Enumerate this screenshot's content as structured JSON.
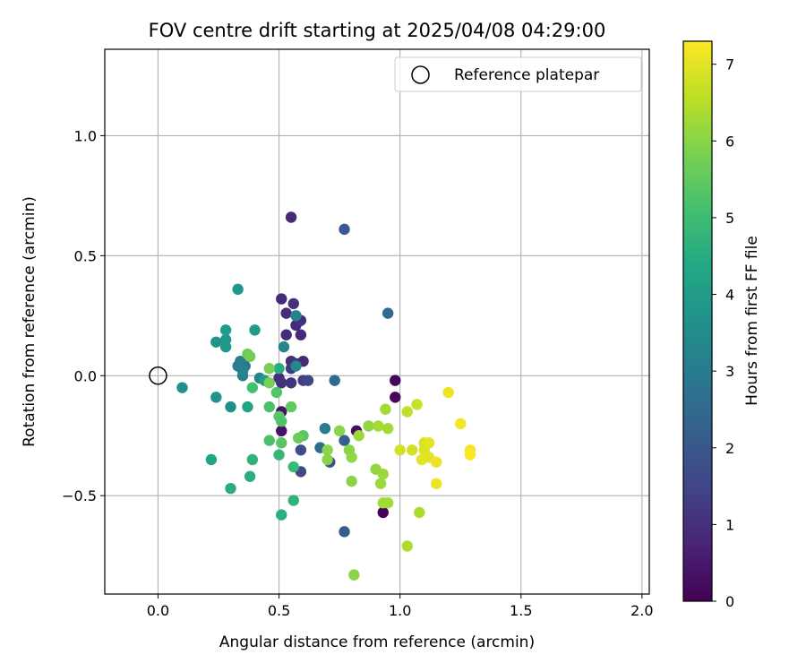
{
  "chart_data": {
    "type": "scatter",
    "title": "FOV centre drift starting at 2025/04/08 04:29:00",
    "xlabel": "Angular distance from reference (arcmin)",
    "ylabel": "Rotation from reference (arcmin)",
    "xlim": [
      -0.22,
      2.03
    ],
    "ylim": [
      -0.91,
      1.36
    ],
    "xticks": [
      0.0,
      0.5,
      1.0,
      1.5,
      2.0
    ],
    "xtick_labels": [
      "0.0",
      "0.5",
      "1.0",
      "1.5",
      "2.0"
    ],
    "yticks": [
      -0.5,
      0.0,
      0.5,
      1.0
    ],
    "ytick_labels": [
      "−0.5",
      "0.0",
      "0.5",
      "1.0"
    ],
    "grid": true,
    "legend": {
      "position": "top-right",
      "entries": [
        {
          "label": "Reference platepar",
          "marker": "open-circle",
          "x": 0.0,
          "y": 0.0
        }
      ]
    },
    "colorbar": {
      "label": "Hours from first FF file",
      "colormap": "viridis",
      "range": [
        0,
        7.3
      ],
      "ticks": [
        0,
        1,
        2,
        3,
        4,
        5,
        6,
        7
      ],
      "tick_labels": [
        "0",
        "1",
        "2",
        "3",
        "4",
        "5",
        "6",
        "7"
      ]
    },
    "points": [
      {
        "x": 0.93,
        "y": -0.57,
        "c": 0.05
      },
      {
        "x": 0.98,
        "y": -0.02,
        "c": 0.1
      },
      {
        "x": 0.98,
        "y": -0.09,
        "c": 0.15
      },
      {
        "x": 0.82,
        "y": -0.23,
        "c": 0.2
      },
      {
        "x": 0.51,
        "y": -0.23,
        "c": 0.35
      },
      {
        "x": 0.51,
        "y": -0.15,
        "c": 0.4
      },
      {
        "x": 0.55,
        "y": 0.66,
        "c": 0.8
      },
      {
        "x": 0.51,
        "y": 0.32,
        "c": 0.9
      },
      {
        "x": 0.53,
        "y": 0.26,
        "c": 0.9
      },
      {
        "x": 0.56,
        "y": 0.3,
        "c": 1.0
      },
      {
        "x": 0.57,
        "y": 0.21,
        "c": 0.9
      },
      {
        "x": 0.59,
        "y": 0.23,
        "c": 1.0
      },
      {
        "x": 0.59,
        "y": 0.17,
        "c": 0.8
      },
      {
        "x": 0.53,
        "y": 0.17,
        "c": 0.9
      },
      {
        "x": 0.55,
        "y": 0.06,
        "c": 1.0
      },
      {
        "x": 0.6,
        "y": 0.06,
        "c": 0.9
      },
      {
        "x": 0.57,
        "y": 0.05,
        "c": 1.0
      },
      {
        "x": 0.55,
        "y": 0.03,
        "c": 1.2
      },
      {
        "x": 0.5,
        "y": -0.01,
        "c": 0.9
      },
      {
        "x": 0.51,
        "y": -0.03,
        "c": 1.0
      },
      {
        "x": 0.55,
        "y": -0.03,
        "c": 1.1
      },
      {
        "x": 0.6,
        "y": -0.02,
        "c": 1.3
      },
      {
        "x": 0.62,
        "y": -0.02,
        "c": 1.5
      },
      {
        "x": 0.59,
        "y": -0.4,
        "c": 1.6
      },
      {
        "x": 0.59,
        "y": -0.31,
        "c": 1.7
      },
      {
        "x": 0.71,
        "y": -0.36,
        "c": 1.7
      },
      {
        "x": 0.77,
        "y": 0.61,
        "c": 2.1
      },
      {
        "x": 0.77,
        "y": -0.65,
        "c": 2.1
      },
      {
        "x": 0.77,
        "y": -0.27,
        "c": 2.2
      },
      {
        "x": 0.73,
        "y": -0.02,
        "c": 2.5
      },
      {
        "x": 0.95,
        "y": 0.26,
        "c": 2.6
      },
      {
        "x": 0.67,
        "y": -0.3,
        "c": 2.6
      },
      {
        "x": 0.69,
        "y": -0.22,
        "c": 3.0
      },
      {
        "x": 0.36,
        "y": 0.04,
        "c": 2.9
      },
      {
        "x": 0.34,
        "y": 0.06,
        "c": 3.0
      },
      {
        "x": 0.33,
        "y": 0.04,
        "c": 3.1
      },
      {
        "x": 0.35,
        "y": 0.0,
        "c": 3.1
      },
      {
        "x": 0.35,
        "y": 0.02,
        "c": 3.2
      },
      {
        "x": 0.42,
        "y": -0.01,
        "c": 3.3
      },
      {
        "x": 0.52,
        "y": 0.12,
        "c": 3.3
      },
      {
        "x": 0.57,
        "y": 0.25,
        "c": 3.2
      },
      {
        "x": 0.57,
        "y": 0.04,
        "c": 3.4
      },
      {
        "x": 0.1,
        "y": -0.05,
        "c": 3.6
      },
      {
        "x": 0.24,
        "y": -0.09,
        "c": 3.7
      },
      {
        "x": 0.3,
        "y": -0.13,
        "c": 3.6
      },
      {
        "x": 0.24,
        "y": 0.14,
        "c": 3.7
      },
      {
        "x": 0.28,
        "y": 0.15,
        "c": 3.8
      },
      {
        "x": 0.28,
        "y": 0.12,
        "c": 3.9
      },
      {
        "x": 0.28,
        "y": 0.19,
        "c": 4.0
      },
      {
        "x": 0.33,
        "y": 0.36,
        "c": 3.8
      },
      {
        "x": 0.4,
        "y": 0.19,
        "c": 4.0
      },
      {
        "x": 0.44,
        "y": -0.02,
        "c": 4.1
      },
      {
        "x": 0.37,
        "y": -0.13,
        "c": 4.3
      },
      {
        "x": 0.22,
        "y": -0.35,
        "c": 4.3
      },
      {
        "x": 0.3,
        "y": -0.47,
        "c": 4.5
      },
      {
        "x": 0.38,
        "y": -0.42,
        "c": 4.6
      },
      {
        "x": 0.39,
        "y": -0.35,
        "c": 4.7
      },
      {
        "x": 0.51,
        "y": -0.58,
        "c": 4.6
      },
      {
        "x": 0.56,
        "y": -0.52,
        "c": 4.7
      },
      {
        "x": 0.5,
        "y": 0.03,
        "c": 4.5
      },
      {
        "x": 0.5,
        "y": -0.33,
        "c": 4.8
      },
      {
        "x": 0.56,
        "y": -0.38,
        "c": 4.9
      },
      {
        "x": 0.39,
        "y": -0.05,
        "c": 5.1
      },
      {
        "x": 0.46,
        "y": -0.13,
        "c": 5.2
      },
      {
        "x": 0.49,
        "y": -0.07,
        "c": 5.3
      },
      {
        "x": 0.5,
        "y": -0.17,
        "c": 5.4
      },
      {
        "x": 0.51,
        "y": -0.19,
        "c": 5.3
      },
      {
        "x": 0.46,
        "y": -0.27,
        "c": 5.2
      },
      {
        "x": 0.51,
        "y": -0.28,
        "c": 5.4
      },
      {
        "x": 0.55,
        "y": -0.13,
        "c": 5.5
      },
      {
        "x": 0.6,
        "y": -0.25,
        "c": 5.4
      },
      {
        "x": 0.58,
        "y": -0.26,
        "c": 5.6
      },
      {
        "x": 0.37,
        "y": 0.09,
        "c": 5.6
      },
      {
        "x": 0.38,
        "y": 0.08,
        "c": 5.7
      },
      {
        "x": 0.46,
        "y": 0.03,
        "c": 5.8
      },
      {
        "x": 0.46,
        "y": -0.03,
        "c": 5.8
      },
      {
        "x": 0.75,
        "y": -0.23,
        "c": 6.0
      },
      {
        "x": 0.7,
        "y": -0.31,
        "c": 6.0
      },
      {
        "x": 0.7,
        "y": -0.35,
        "c": 6.0
      },
      {
        "x": 0.79,
        "y": -0.31,
        "c": 6.0
      },
      {
        "x": 0.8,
        "y": -0.34,
        "c": 6.1
      },
      {
        "x": 0.83,
        "y": -0.25,
        "c": 6.2
      },
      {
        "x": 0.87,
        "y": -0.21,
        "c": 6.1
      },
      {
        "x": 0.8,
        "y": -0.44,
        "c": 6.0
      },
      {
        "x": 0.81,
        "y": -0.83,
        "c": 6.0
      },
      {
        "x": 0.9,
        "y": -0.39,
        "c": 6.1
      },
      {
        "x": 0.93,
        "y": -0.41,
        "c": 6.2
      },
      {
        "x": 0.92,
        "y": -0.45,
        "c": 6.2
      },
      {
        "x": 0.93,
        "y": -0.53,
        "c": 6.3
      },
      {
        "x": 0.95,
        "y": -0.53,
        "c": 6.3
      },
      {
        "x": 0.91,
        "y": -0.21,
        "c": 6.3
      },
      {
        "x": 0.95,
        "y": -0.22,
        "c": 6.3
      },
      {
        "x": 0.94,
        "y": -0.14,
        "c": 6.3
      },
      {
        "x": 1.03,
        "y": -0.71,
        "c": 6.4
      },
      {
        "x": 1.08,
        "y": -0.57,
        "c": 6.4
      },
      {
        "x": 1.03,
        "y": -0.15,
        "c": 6.6
      },
      {
        "x": 1.07,
        "y": -0.12,
        "c": 6.7
      },
      {
        "x": 1.0,
        "y": -0.31,
        "c": 6.8
      },
      {
        "x": 1.05,
        "y": -0.31,
        "c": 6.8
      },
      {
        "x": 1.1,
        "y": -0.31,
        "c": 6.9
      },
      {
        "x": 1.09,
        "y": -0.35,
        "c": 7.0
      },
      {
        "x": 1.12,
        "y": -0.34,
        "c": 7.0
      },
      {
        "x": 1.1,
        "y": -0.28,
        "c": 6.9
      },
      {
        "x": 1.12,
        "y": -0.28,
        "c": 7.0
      },
      {
        "x": 1.15,
        "y": -0.36,
        "c": 7.1
      },
      {
        "x": 1.15,
        "y": -0.45,
        "c": 7.1
      },
      {
        "x": 1.2,
        "y": -0.07,
        "c": 7.1
      },
      {
        "x": 1.25,
        "y": -0.2,
        "c": 7.2
      },
      {
        "x": 1.29,
        "y": -0.31,
        "c": 7.2
      },
      {
        "x": 1.29,
        "y": -0.33,
        "c": 7.3
      }
    ]
  }
}
